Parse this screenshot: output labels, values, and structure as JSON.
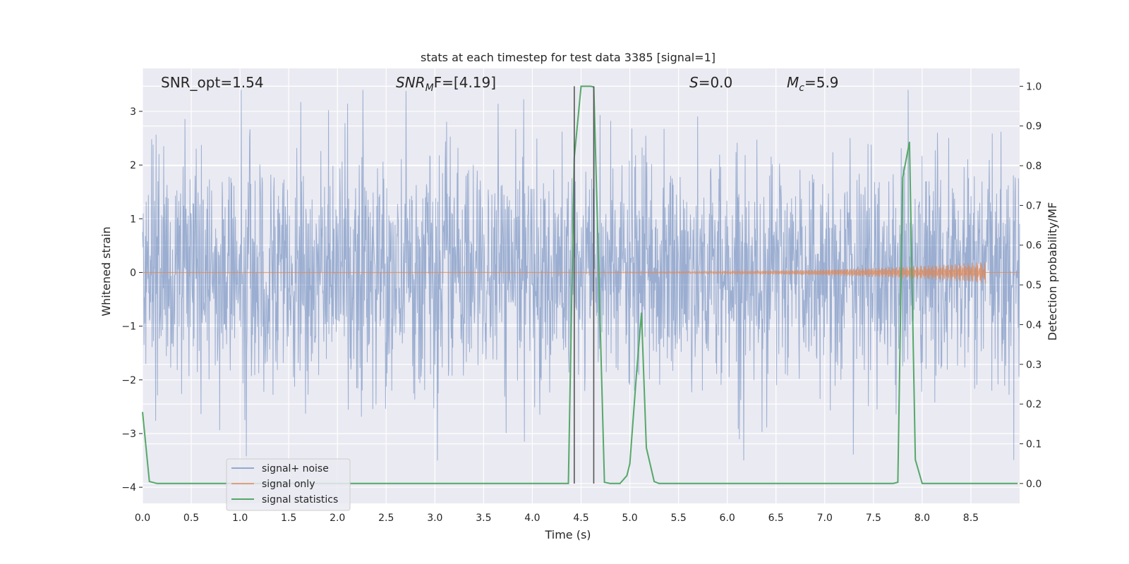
{
  "chart_data": {
    "type": "line",
    "title": "stats at each timestep for test data 3385 [signal=1]",
    "xlabel": "Time (s)",
    "ylabel_left": "Whitened strain",
    "ylabel_right": "Detection probability/MF",
    "xlim": [
      0.0,
      9.0
    ],
    "ylim_left": [
      -4.3,
      3.8
    ],
    "ylim_right": [
      -0.05,
      1.045
    ],
    "x_ticks": [
      "0.0",
      "0.5",
      "1.0",
      "1.5",
      "2.0",
      "2.5",
      "3.0",
      "3.5",
      "4.0",
      "4.5",
      "5.0",
      "5.5",
      "6.0",
      "6.5",
      "7.0",
      "7.5",
      "8.0",
      "8.5"
    ],
    "y_left_ticks": [
      "−4",
      "−3",
      "−2",
      "−1",
      "0",
      "1",
      "2",
      "3"
    ],
    "y_right_ticks": [
      "0.0",
      "0.1",
      "0.2",
      "0.3",
      "0.4",
      "0.5",
      "0.6",
      "0.7",
      "0.8",
      "0.9",
      "1.0"
    ],
    "grid": true,
    "legend_position": "lower-left",
    "annotations": {
      "snr_opt": "SNR_opt=1.54",
      "snr_mf_main": "SNR",
      "snr_mf_sub": "M",
      "snr_mf_rest": "F=[4.19]",
      "s_italic": "S",
      "s_rest": "=0.0",
      "mc_italic": "M",
      "mc_sub": "c",
      "mc_rest": "=5.9"
    },
    "vertical_lines_x": [
      4.43,
      4.63
    ],
    "series": [
      {
        "name": "signal+ noise",
        "color": "#4c72b0",
        "description_style": "dense noise, amplitude ~±1.6 typical, peaks ~±3.4",
        "peak_y_max": 3.4,
        "peak_y_min": -3.5
      },
      {
        "name": "signal only",
        "color": "#dd8452",
        "chirp_end_x": 8.65,
        "chirp_end_amplitude": 0.2
      },
      {
        "name": "signal statistics",
        "color": "#55a868",
        "x": [
          0.0,
          0.07,
          0.15,
          4.0,
          4.37,
          4.43,
          4.5,
          4.55,
          4.6,
          4.63,
          4.74,
          4.8,
          4.9,
          4.97,
          5.0,
          5.07,
          5.12,
          5.17,
          5.25,
          5.3,
          6.0,
          7.7,
          7.75,
          7.8,
          7.87,
          7.93,
          8.0,
          8.5,
          8.98
        ],
        "y": [
          0.18,
          0.005,
          0.0,
          0.0,
          0.0,
          0.82,
          1.0,
          1.0,
          1.0,
          0.998,
          0.003,
          0.0,
          0.0,
          0.02,
          0.05,
          0.28,
          0.43,
          0.09,
          0.005,
          0.0,
          0.0,
          0.0,
          0.003,
          0.77,
          0.86,
          0.06,
          0.0,
          0.0,
          0.0
        ]
      }
    ]
  }
}
